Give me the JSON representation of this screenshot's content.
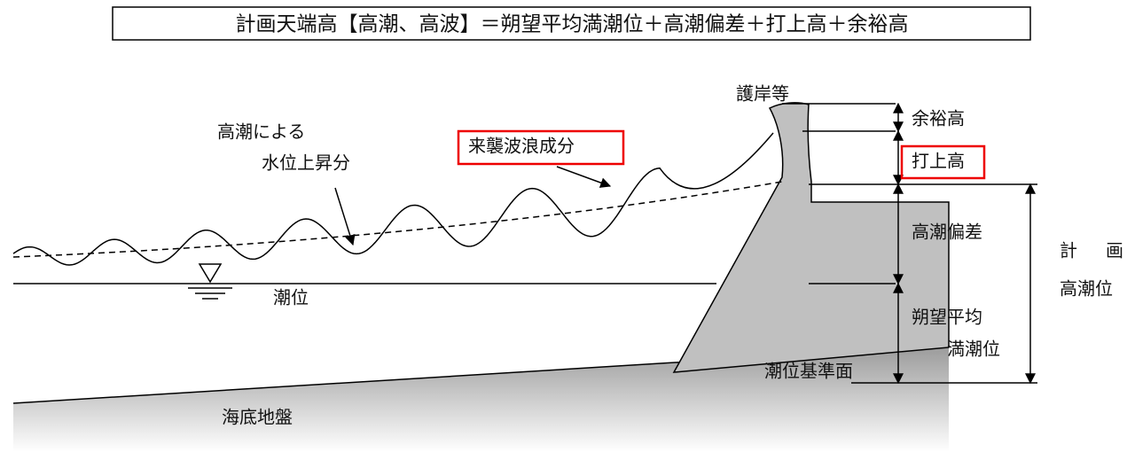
{
  "title": "計画天端高【高潮、高波】＝朔望平均満潮位＋高潮偏差＋打上高＋余裕高",
  "labels": {
    "seawall": "護岸等",
    "freeboard": "余裕高",
    "runup": "打上高",
    "surge": "高潮偏差",
    "hwl_1": "朔望平均",
    "hwl_2": "満潮位",
    "datum": "潮位基準面",
    "design_1": "計画",
    "design_2": "高潮位",
    "rise_1": "高潮による",
    "rise_2": "水位上昇分",
    "wave": "来襲波浪成分",
    "tide": "潮位",
    "seabed": "海底地盤"
  }
}
